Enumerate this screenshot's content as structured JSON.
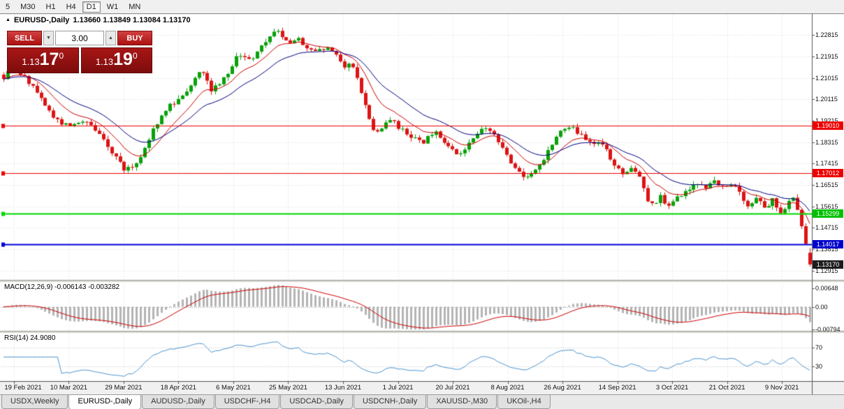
{
  "toolbar": {
    "items": [
      {
        "label": "5",
        "active": false
      },
      {
        "label": "M30",
        "active": false
      },
      {
        "label": "H1",
        "active": false
      },
      {
        "label": "H4",
        "active": false
      },
      {
        "label": "D1",
        "active": true
      },
      {
        "label": "W1",
        "active": false
      },
      {
        "label": "MN",
        "active": false
      }
    ]
  },
  "chart_header": {
    "icon": "▲",
    "symbol": "EURUSD-,Daily",
    "ohlc": "1.13660 1.13849 1.13084 1.13170"
  },
  "trade_panel": {
    "sell_label": "SELL",
    "buy_label": "BUY",
    "volume": "3.00",
    "vol_down_glyph": "▼",
    "vol_up_glyph": "▲",
    "sell_price_prefix": "1.13",
    "sell_price_big": "17",
    "sell_price_sup": "0",
    "buy_price_prefix": "1.13",
    "buy_price_big": "19",
    "buy_price_sup": "0"
  },
  "indicators": {
    "macd_label": "MACD(12,26,9) -0.006143 -0.003282",
    "rsi_label": "RSI(14) 24.9080"
  },
  "price_axis_labels": [
    "1.22815",
    "1.21915",
    "1.21015",
    "1.20115",
    "1.19215",
    "1.18315",
    "1.17415",
    "1.16515",
    "1.15615",
    "1.14715",
    "1.13815",
    "1.12915"
  ],
  "macd_axis_labels": [
    "0.00648",
    "0.00",
    "-0.00794"
  ],
  "rsi_axis_labels": [
    "70",
    "30"
  ],
  "date_axis_labels": [
    "19 Feb 2021",
    "10 Mar 2021",
    "29 Mar 2021",
    "18 Apr 2021",
    "6 May 2021",
    "25 May 2021",
    "13 Jun 2021",
    "1 Jul 2021",
    "20 Jul 2021",
    "8 Aug 2021",
    "26 Aug 2021",
    "14 Sep 2021",
    "3 Oct 2021",
    "21 Oct 2021",
    "9 Nov 2021"
  ],
  "price_tags": [
    {
      "label": "1.19010",
      "price": 1.1901,
      "bg": "#ee0000"
    },
    {
      "label": "1.17012",
      "price": 1.17012,
      "bg": "#ee0000"
    },
    {
      "label": "1.15299",
      "price": 1.15299,
      "bg": "#00c000"
    },
    {
      "label": "1.14017",
      "price": 1.14017,
      "bg": "#0000cc"
    },
    {
      "label": "1.13170",
      "price": 1.1317,
      "bg": "#1c1c1c"
    }
  ],
  "tabs": [
    {
      "label": "USDX,Weekly",
      "active": false
    },
    {
      "label": "EURUSD-,Daily",
      "active": true
    },
    {
      "label": "AUDUSD-,Daily",
      "active": false
    },
    {
      "label": "USDCHF-,H4",
      "active": false
    },
    {
      "label": "USDCAD-,Daily",
      "active": false
    },
    {
      "label": "USDCNH-,Daily",
      "active": false
    },
    {
      "label": "XAUUSD-,M30",
      "active": false
    },
    {
      "label": "UKOil-,H4",
      "active": false
    }
  ],
  "chart_data": {
    "type": "candlestick+indicators",
    "symbol": "EURUSD-,Daily",
    "bar_count": 195,
    "ohlc_last": [
      1.1366,
      1.13849,
      1.13084,
      1.1317
    ],
    "current_price": 1.1317,
    "price_range": {
      "min": 1.1252,
      "max": 1.237
    },
    "price_path": [
      [
        0.0,
        1.2105
      ],
      [
        0.01,
        1.2132
      ],
      [
        0.022,
        1.2118
      ],
      [
        0.035,
        1.2068
      ],
      [
        0.05,
        1.1992
      ],
      [
        0.065,
        1.1926
      ],
      [
        0.08,
        1.1896
      ],
      [
        0.095,
        1.1922
      ],
      [
        0.11,
        1.1898
      ],
      [
        0.125,
        1.1832
      ],
      [
        0.138,
        1.1772
      ],
      [
        0.15,
        1.1718
      ],
      [
        0.16,
        1.1722
      ],
      [
        0.172,
        1.1786
      ],
      [
        0.188,
        1.1902
      ],
      [
        0.205,
        1.1982
      ],
      [
        0.225,
        1.204
      ],
      [
        0.245,
        1.215
      ],
      [
        0.258,
        1.2052
      ],
      [
        0.272,
        1.209
      ],
      [
        0.29,
        1.219
      ],
      [
        0.31,
        1.2186
      ],
      [
        0.328,
        1.2268
      ],
      [
        0.34,
        1.2308
      ],
      [
        0.352,
        1.2242
      ],
      [
        0.365,
        1.227
      ],
      [
        0.378,
        1.2212
      ],
      [
        0.392,
        1.2232
      ],
      [
        0.408,
        1.2216
      ],
      [
        0.422,
        1.2142
      ],
      [
        0.432,
        1.2166
      ],
      [
        0.442,
        1.2062
      ],
      [
        0.452,
        1.193
      ],
      [
        0.463,
        1.1868
      ],
      [
        0.478,
        1.1932
      ],
      [
        0.492,
        1.1884
      ],
      [
        0.505,
        1.1856
      ],
      [
        0.52,
        1.1832
      ],
      [
        0.535,
        1.1876
      ],
      [
        0.55,
        1.1806
      ],
      [
        0.565,
        1.1778
      ],
      [
        0.58,
        1.1846
      ],
      [
        0.598,
        1.1894
      ],
      [
        0.615,
        1.1832
      ],
      [
        0.63,
        1.1742
      ],
      [
        0.645,
        1.1682
      ],
      [
        0.658,
        1.1706
      ],
      [
        0.67,
        1.1752
      ],
      [
        0.688,
        1.188
      ],
      [
        0.703,
        1.1902
      ],
      [
        0.718,
        1.1848
      ],
      [
        0.73,
        1.1812
      ],
      [
        0.742,
        1.1832
      ],
      [
        0.755,
        1.1732
      ],
      [
        0.768,
        1.1702
      ],
      [
        0.778,
        1.1726
      ],
      [
        0.788,
        1.1692
      ],
      [
        0.797,
        1.1598
      ],
      [
        0.806,
        1.1565
      ],
      [
        0.815,
        1.1606
      ],
      [
        0.824,
        1.1562
      ],
      [
        0.834,
        1.1596
      ],
      [
        0.848,
        1.1636
      ],
      [
        0.86,
        1.1656
      ],
      [
        0.872,
        1.1642
      ],
      [
        0.884,
        1.1666
      ],
      [
        0.895,
        1.1632
      ],
      [
        0.905,
        1.1656
      ],
      [
        0.915,
        1.1602
      ],
      [
        0.924,
        1.1562
      ],
      [
        0.934,
        1.1606
      ],
      [
        0.944,
        1.1552
      ],
      [
        0.954,
        1.1586
      ],
      [
        0.962,
        1.1524
      ],
      [
        0.971,
        1.1566
      ],
      [
        0.98,
        1.1592
      ],
      [
        0.9875,
        1.152
      ],
      [
        0.993,
        1.144
      ],
      [
        0.9965,
        1.1366
      ],
      [
        1.0,
        1.1317
      ]
    ],
    "candle_colors": {
      "up": "#0aa10a",
      "down": "#dc1414"
    },
    "ma": [
      {
        "type": "ema",
        "period": 10,
        "color": "#cc0000"
      },
      {
        "type": "ema",
        "period": 21,
        "color": "#000080"
      }
    ],
    "levels": [
      {
        "price": 1.1901,
        "color": "#ee0000",
        "width": 1
      },
      {
        "price": 1.17012,
        "color": "#ee0000",
        "width": 1
      },
      {
        "price": 1.15299,
        "color": "#00d800",
        "width": 2
      },
      {
        "price": 1.14017,
        "color": "#0000d8",
        "width": 2
      }
    ],
    "macd": {
      "fast": 12,
      "slow": 26,
      "signal": 9,
      "amp": 0.0085,
      "hist_color": "#b4b4b4",
      "signal_color": "#cc0000",
      "last_values": "-0.006143 -0.003282"
    },
    "rsi": {
      "period": 14,
      "last": 24.908,
      "levels": [
        70,
        30
      ],
      "color": "#4d94d0"
    },
    "date_tick_first_bar": 2.5,
    "date_tick_step_bars": 13.2
  }
}
